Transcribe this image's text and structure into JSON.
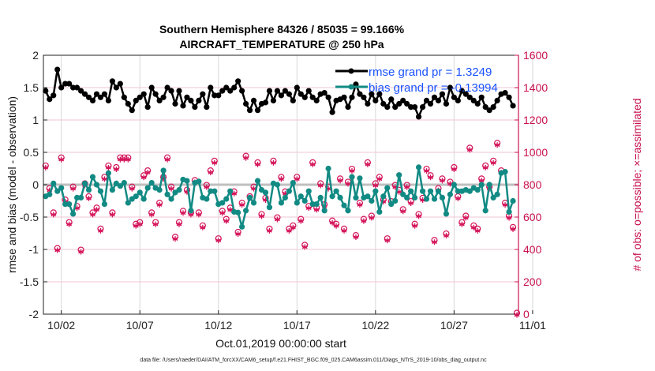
{
  "chart_data": {
    "type": "line",
    "title": [
      "Southern Hemisphere 84326 / 85035 = 99.166%",
      "AIRCRAFT_TEMPERATURE @ 250 hPa"
    ],
    "xlabel": "Oct.01,2019 00:00:00 start",
    "ylabel": "rmse and bias (model - observation)",
    "ylabel_right": "# of obs: o=possible; ×=assimilated",
    "footer": "data file: /Users/raeder/DAI/ATM_forcXX/CAM6_setup/f.e21.FHIST_BGC.f09_025.CAM6assim.011/Diags_NTrS_2019-10/obs_diag_output.nc",
    "xlim": [
      -0.14,
      30.1
    ],
    "x_units": "days since Oct.01,2019 00:00",
    "x_start": 0,
    "x_step": 0.25,
    "x_ticks": [
      1,
      6,
      11,
      16,
      21,
      26,
      31
    ],
    "x_tick_labels": [
      "10/02",
      "10/07",
      "10/12",
      "10/17",
      "10/22",
      "10/27",
      "11/01"
    ],
    "ylim": [
      -2,
      2
    ],
    "y_ticks": [
      -2,
      -1.5,
      -1,
      -0.5,
      0,
      0.5,
      1,
      1.5,
      2
    ],
    "y_tick_labels": [
      "-2",
      "-1.5",
      "-1",
      "-0.5",
      "0",
      "0.5",
      "1",
      "1.5",
      "2"
    ],
    "ylim_right": [
      0,
      1600
    ],
    "y_ticks_right": [
      0,
      200,
      400,
      600,
      800,
      1000,
      1200,
      1400,
      1600
    ],
    "y_tick_labels_right": [
      "0",
      "200",
      "400",
      "600",
      "800",
      "1000",
      "1200",
      "1400",
      "1600"
    ],
    "grid": true,
    "legend_position": "top-right",
    "series": [
      {
        "name": "rmse grand pr = 1.3249",
        "color": "#000000",
        "axis": "left",
        "values": [
          1.45,
          1.32,
          1.38,
          1.78,
          1.5,
          1.56,
          1.56,
          1.5,
          1.5,
          1.45,
          1.4,
          1.35,
          1.3,
          1.4,
          1.35,
          1.4,
          1.3,
          1.6,
          1.5,
          1.56,
          1.35,
          1.25,
          1.15,
          1.3,
          1.35,
          1.4,
          1.2,
          1.5,
          1.4,
          1.3,
          1.35,
          1.5,
          1.45,
          1.25,
          1.45,
          1.22,
          1.35,
          1.3,
          1.2,
          1.3,
          1.4,
          1.2,
          1.5,
          1.38,
          1.38,
          1.45,
          1.5,
          1.45,
          1.5,
          1.6,
          1.45,
          1.25,
          1.15,
          1.3,
          1.15,
          1.25,
          1.27,
          1.45,
          1.3,
          1.45,
          1.38,
          1.45,
          1.4,
          1.3,
          1.5,
          1.4,
          1.35,
          1.45,
          1.35,
          1.3,
          1.4,
          1.42,
          1.35,
          1.12,
          1.3,
          1.32,
          1.35,
          1.2,
          1.35,
          1.55,
          1.4,
          1.35,
          1.25,
          1.4,
          1.3,
          1.4,
          1.25,
          1.2,
          1.32,
          1.2,
          1.25,
          1.3,
          1.25,
          1.2,
          1.2,
          1.05,
          1.2,
          1.3,
          1.25,
          1.35,
          1.3,
          1.4,
          1.25,
          1.5,
          1.35,
          1.3,
          1.45,
          1.4,
          1.35,
          1.3,
          1.25,
          1.35,
          1.2,
          1.15,
          1.2,
          1.3,
          1.4,
          1.42,
          1.35,
          1.22,
          null
        ]
      },
      {
        "name": "bias grand pr = -0.13994",
        "color": "#128a84",
        "axis": "left",
        "values": [
          -0.18,
          -0.15,
          0.02,
          -0.1,
          -0.05,
          -0.3,
          -0.3,
          -0.45,
          -0.2,
          -0.2,
          0.02,
          -0.08,
          0.12,
          0.0,
          -0.1,
          -0.3,
          0.18,
          -0.08,
          0.02,
          -0.02,
          0.03,
          -0.28,
          -0.22,
          -0.18,
          -0.12,
          -0.22,
          -0.05,
          0.03,
          -0.05,
          -0.08,
          0.22,
          -0.15,
          -0.22,
          -0.12,
          -0.08,
          0.08,
          0.06,
          -0.4,
          0.03,
          0.05,
          -0.2,
          -0.22,
          -0.1,
          -0.1,
          -0.3,
          -0.28,
          -0.22,
          -0.1,
          -0.42,
          -0.43,
          -0.65,
          -0.4,
          -0.2,
          -0.28,
          0.06,
          -0.08,
          -0.12,
          -0.35,
          0.02,
          0.0,
          -0.28,
          -0.2,
          -0.1,
          0.03,
          -0.28,
          -0.18,
          -0.25,
          -0.1,
          -0.3,
          -0.3,
          -0.2,
          -0.4,
          0.25,
          -0.18,
          -0.1,
          -0.2,
          -0.32,
          -0.4,
          0.12,
          -0.2,
          0.1,
          -0.2,
          -0.18,
          -0.25,
          -0.1,
          -0.42,
          -0.18,
          -0.05,
          -0.3,
          -0.25,
          0.15,
          -0.15,
          -0.2,
          -0.1,
          -0.2,
          0.27,
          -0.1,
          -0.22,
          -0.1,
          -0.22,
          -0.1,
          -0.2,
          -0.45,
          -0.15,
          0.0,
          -0.1,
          -0.1,
          -0.08,
          -0.1,
          -0.05,
          -0.08,
          0.0,
          -0.4,
          0.0,
          -0.2,
          -0.15,
          0.18,
          0.2,
          -0.42,
          -0.25,
          null
        ]
      },
      {
        "name": "obs possible / assimilated",
        "color": "#d4145a",
        "axis": "right",
        "marker": "o*",
        "values": [
          910,
          770,
          620,
          400,
          960,
          700,
          560,
          780,
          660,
          390,
          800,
          720,
          620,
          650,
          520,
          840,
          910,
          620,
          900,
          960,
          960,
          960,
          780,
          550,
          560,
          850,
          880,
          620,
          560,
          680,
          840,
          960,
          780,
          470,
          560,
          630,
          760,
          620,
          820,
          620,
          540,
          790,
          880,
          940,
          460,
          630,
          580,
          650,
          750,
          500,
          680,
          970,
          720,
          780,
          930,
          610,
          710,
          520,
          940,
          590,
          840,
          750,
          520,
          540,
          840,
          580,
          420,
          660,
          930,
          650,
          800,
          670,
          780,
          570,
          550,
          830,
          520,
          810,
          890,
          480,
          680,
          580,
          930,
          600,
          800,
          840,
          700,
          460,
          690,
          790,
          760,
          640,
          790,
          690,
          550,
          610,
          710,
          890,
          850,
          450,
          770,
          830,
          490,
          810,
          900,
          720,
          560,
          600,
          1020,
          540,
          520,
          830,
          910,
          780,
          940,
          1050,
          880,
          680,
          600,
          530,
          0
        ]
      }
    ]
  }
}
